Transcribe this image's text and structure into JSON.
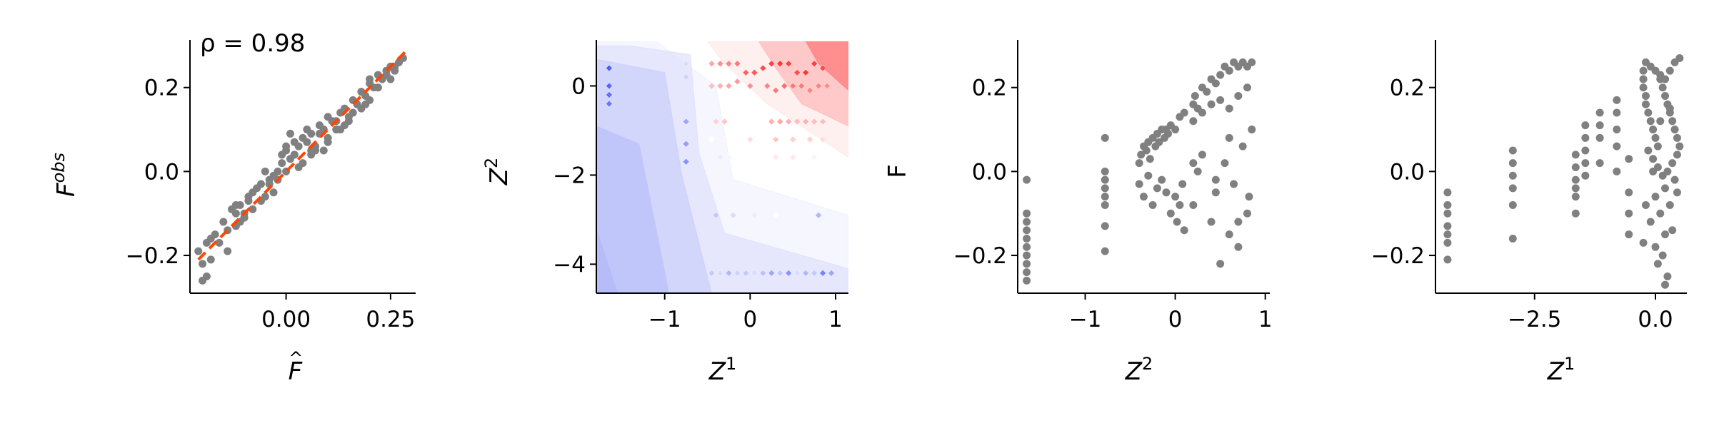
{
  "chart_data": [
    {
      "type": "scatter",
      "id": "fit",
      "xlabel": "F̂",
      "ylabel": "F^obs",
      "xlim": [
        -0.23,
        0.31
      ],
      "ylim": [
        -0.29,
        0.31
      ],
      "xticks": [
        0.0,
        0.25
      ],
      "xtick_labels": [
        "0.00",
        "0.25"
      ],
      "yticks": [
        -0.2,
        0.0,
        0.2
      ],
      "ytick_labels": [
        "−0.2",
        "0.0",
        "0.2"
      ],
      "annotation": "ρ = 0.98",
      "point_color": "#808080",
      "line_color": "#ff4500",
      "fit_line": {
        "x": [
          -0.21,
          0.29
        ],
        "y": [
          -0.21,
          0.29
        ]
      },
      "points": {
        "x": [
          -0.2,
          -0.19,
          -0.21,
          -0.18,
          -0.2,
          -0.17,
          -0.16,
          -0.18,
          -0.15,
          -0.13,
          -0.14,
          -0.12,
          -0.11,
          -0.12,
          -0.1,
          -0.09,
          -0.08,
          -0.1,
          -0.07,
          -0.06,
          -0.08,
          -0.05,
          -0.04,
          -0.06,
          -0.03,
          -0.02,
          -0.04,
          -0.01,
          0.0,
          -0.02,
          0.01,
          0.02,
          0.0,
          0.03,
          0.04,
          0.02,
          0.05,
          0.06,
          0.04,
          0.07,
          0.08,
          0.06,
          0.09,
          0.1,
          0.08,
          0.11,
          0.12,
          0.1,
          0.13,
          0.14,
          0.12,
          0.15,
          0.16,
          0.14,
          0.17,
          0.18,
          0.16,
          0.19,
          0.2,
          0.18,
          0.21,
          0.22,
          0.2,
          0.23,
          0.24,
          0.22,
          0.25,
          0.26,
          0.24,
          0.27,
          0.28,
          0.26,
          -0.12,
          -0.1,
          -0.11,
          -0.09,
          0.0,
          0.01,
          -0.01,
          0.02,
          0.03,
          0.05,
          0.07,
          0.1,
          0.13,
          0.15,
          0.18,
          0.2,
          -0.05,
          -0.03,
          0.06,
          0.09,
          0.12,
          0.19,
          0.22,
          0.25,
          -0.19,
          -0.14
        ],
        "y": [
          -0.22,
          -0.17,
          -0.19,
          -0.16,
          -0.26,
          -0.15,
          -0.17,
          -0.21,
          -0.12,
          -0.09,
          -0.14,
          -0.1,
          -0.08,
          -0.13,
          -0.1,
          -0.06,
          -0.05,
          -0.11,
          -0.04,
          -0.03,
          -0.09,
          -0.06,
          -0.02,
          -0.07,
          -0.01,
          0.0,
          -0.03,
          0.02,
          0.05,
          -0.02,
          0.03,
          0.04,
          0.0,
          0.06,
          0.02,
          0.04,
          0.07,
          0.05,
          0.08,
          0.06,
          0.09,
          0.04,
          0.1,
          0.08,
          0.11,
          0.12,
          0.1,
          0.13,
          0.14,
          0.11,
          0.12,
          0.13,
          0.17,
          0.15,
          0.16,
          0.19,
          0.14,
          0.18,
          0.21,
          0.19,
          0.2,
          0.23,
          0.22,
          0.22,
          0.24,
          0.2,
          0.25,
          0.24,
          0.23,
          0.26,
          0.27,
          0.25,
          -0.08,
          -0.11,
          -0.12,
          -0.07,
          0.06,
          0.09,
          0.04,
          0.07,
          0.01,
          0.1,
          0.05,
          0.07,
          0.1,
          0.12,
          0.15,
          0.17,
          0.0,
          -0.05,
          0.09,
          0.05,
          0.1,
          0.16,
          0.2,
          0.22,
          -0.25,
          -0.19
        ]
      }
    },
    {
      "type": "heatmap",
      "id": "contour",
      "xlabel": "Z^1",
      "ylabel": "Z^2",
      "xlim": [
        -1.8,
        1.15
      ],
      "ylim": [
        -4.65,
        1.0
      ],
      "xticks": [
        -1,
        0,
        1
      ],
      "xtick_labels": [
        "−1",
        "0",
        "1"
      ],
      "yticks": [
        -4,
        -2,
        0
      ],
      "ytick_labels": [
        "−4",
        "−2",
        "0"
      ],
      "colormap": [
        "#3b4cf0",
        "#ffffff",
        "#ff1e1e"
      ],
      "regions": [
        {
          "level": -0.9,
          "polygon": [
            [
              -1.8,
              -4.65
            ],
            [
              -1.55,
              -4.65
            ],
            [
              -1.8,
              -3.2
            ]
          ]
        },
        {
          "level": -0.7,
          "polygon": [
            [
              -1.8,
              -4.65
            ],
            [
              -0.95,
              -4.65
            ],
            [
              -1.3,
              -1.3
            ],
            [
              -1.8,
              -0.9
            ]
          ]
        },
        {
          "level": -0.5,
          "polygon": [
            [
              -1.8,
              -4.65
            ],
            [
              -0.45,
              -4.65
            ],
            [
              -0.8,
              -2.0
            ],
            [
              -1.0,
              0.3
            ],
            [
              -1.8,
              0.6
            ]
          ]
        },
        {
          "level": -0.3,
          "polygon": [
            [
              -1.8,
              -4.65
            ],
            [
              1.15,
              -4.65
            ],
            [
              1.15,
              -4.1
            ],
            [
              -0.3,
              -3.3
            ],
            [
              -0.6,
              -1.5
            ],
            [
              -0.7,
              0.7
            ],
            [
              -1.4,
              0.9
            ],
            [
              -1.8,
              0.9
            ]
          ]
        },
        {
          "level": -0.15,
          "polygon": [
            [
              -1.8,
              -4.65
            ],
            [
              1.15,
              -4.65
            ],
            [
              1.15,
              -2.9
            ],
            [
              -0.2,
              -2.1
            ],
            [
              -0.4,
              0.0
            ],
            [
              -1.1,
              1.0
            ],
            [
              -1.8,
              1.0
            ]
          ]
        },
        {
          "level": 0.2,
          "polygon": [
            [
              -0.5,
              1.0
            ],
            [
              1.15,
              1.0
            ],
            [
              1.15,
              -1.6
            ],
            [
              0.2,
              -0.4
            ],
            [
              -0.3,
              0.5
            ]
          ]
        },
        {
          "level": 0.45,
          "polygon": [
            [
              0.1,
              1.0
            ],
            [
              1.15,
              1.0
            ],
            [
              1.15,
              -0.9
            ],
            [
              0.6,
              -0.4
            ],
            [
              0.3,
              0.4
            ]
          ]
        },
        {
          "level": 0.7,
          "polygon": [
            [
              0.65,
              1.0
            ],
            [
              1.15,
              1.0
            ],
            [
              1.15,
              -0.1
            ],
            [
              0.8,
              0.5
            ]
          ]
        }
      ],
      "points": {
        "x": [
          -1.65,
          -1.65,
          -1.65,
          -1.65,
          -0.75,
          -0.75,
          -0.75,
          -0.75,
          -0.75,
          -0.45,
          -0.35,
          -0.25,
          -0.15,
          -0.05,
          0.05,
          0.15,
          0.25,
          0.35,
          0.45,
          0.55,
          0.65,
          0.75,
          0.85,
          -0.45,
          -0.35,
          -0.25,
          -0.15,
          0.0,
          0.2,
          0.3,
          0.4,
          0.5,
          0.6,
          0.7,
          0.8,
          0.9,
          -0.4,
          -0.3,
          0.25,
          0.35,
          0.45,
          0.55,
          0.65,
          0.75,
          0.85,
          -0.45,
          -0.3,
          0.0,
          0.3,
          0.5,
          0.7,
          0.85,
          -0.35,
          -0.25,
          -0.15,
          0.3,
          0.5,
          0.75,
          0.9,
          -0.4,
          -0.2,
          0.05,
          0.3,
          0.55,
          0.8,
          0.95
        ],
        "y": [
          0.4,
          0.0,
          -0.2,
          -0.4,
          0.5,
          0.2,
          -0.8,
          -1.3,
          -1.7,
          0.5,
          0.5,
          0.5,
          0.5,
          0.3,
          0.3,
          0.4,
          0.5,
          0.5,
          0.5,
          0.3,
          0.3,
          0.5,
          0.4,
          0.0,
          0.0,
          0.0,
          0.1,
          0.0,
          0.0,
          -0.1,
          0.0,
          0.0,
          0.0,
          -0.1,
          0.0,
          0.0,
          -0.8,
          -0.8,
          -0.8,
          -0.8,
          -0.8,
          -0.8,
          -0.8,
          -0.8,
          -0.8,
          -1.2,
          -1.2,
          -1.2,
          -1.2,
          -1.2,
          -1.2,
          -1.2,
          -1.6,
          -1.6,
          -1.6,
          -1.6,
          -1.6,
          -1.6,
          -1.6,
          -2.9,
          -2.9,
          -2.9,
          -2.9,
          -2.9,
          -2.9,
          -4.2
        ],
        "values": [
          -0.9,
          -0.85,
          -0.8,
          -0.75,
          -0.2,
          -0.25,
          -0.5,
          -0.55,
          -0.6,
          0.4,
          0.5,
          0.55,
          0.6,
          0.7,
          0.75,
          0.8,
          0.85,
          0.9,
          0.85,
          0.8,
          0.9,
          0.85,
          0.8,
          0.3,
          0.35,
          0.4,
          0.45,
          0.5,
          0.55,
          0.6,
          0.65,
          0.6,
          0.6,
          0.55,
          0.55,
          0.5,
          0.2,
          0.25,
          0.35,
          0.4,
          0.35,
          0.3,
          0.35,
          0.3,
          0.3,
          0.0,
          0.05,
          0.15,
          0.25,
          0.2,
          0.2,
          0.15,
          -0.1,
          -0.05,
          0.0,
          0.1,
          0.1,
          0.05,
          0.0,
          -0.3,
          -0.2,
          -0.1,
          0.0,
          -0.05,
          -0.4,
          -0.6
        ]
      },
      "bottom_row": {
        "y": -4.2,
        "x": [
          -0.45,
          -0.35,
          -0.25,
          -0.15,
          -0.05,
          0.05,
          0.15,
          0.25,
          0.35,
          0.45,
          0.55,
          0.65,
          0.75,
          0.85,
          0.95
        ],
        "values": [
          -0.3,
          -0.2,
          -0.4,
          -0.25,
          -0.3,
          -0.2,
          -0.35,
          -0.5,
          -0.3,
          -0.6,
          -0.2,
          -0.4,
          -0.3,
          -0.7,
          -0.5
        ]
      }
    },
    {
      "type": "scatter",
      "id": "z2_vs_f",
      "xlabel": "Z^2",
      "ylabel": "F",
      "xlim": [
        -1.75,
        1.05
      ],
      "ylim": [
        -0.29,
        0.31
      ],
      "xticks": [
        -1,
        0,
        1
      ],
      "xtick_labels": [
        "−1",
        "0",
        "1"
      ],
      "yticks": [
        -0.2,
        0.0,
        0.2
      ],
      "ytick_labels": [
        "−0.2",
        "0.0",
        "0.2"
      ],
      "point_color": "#808080",
      "points": {
        "x": [
          -1.65,
          -1.65,
          -1.65,
          -1.65,
          -1.65,
          -1.65,
          -1.65,
          -1.65,
          -1.65,
          -1.65,
          -0.78,
          -0.78,
          -0.78,
          -0.78,
          -0.78,
          -0.78,
          -0.78,
          -0.78,
          -0.4,
          -0.38,
          -0.35,
          -0.32,
          -0.3,
          -0.28,
          -0.25,
          -0.22,
          -0.2,
          -0.18,
          -0.15,
          -0.12,
          -0.1,
          -0.08,
          -0.05,
          -0.4,
          -0.35,
          -0.3,
          -0.25,
          -0.2,
          -0.15,
          -0.1,
          -0.05,
          0.0,
          0.02,
          0.05,
          0.08,
          0.1,
          0.0,
          0.05,
          0.1,
          0.2,
          0.22,
          0.25,
          0.3,
          0.35,
          0.4,
          0.45,
          0.5,
          0.55,
          0.6,
          0.65,
          0.7,
          0.75,
          0.8,
          0.85,
          0.2,
          0.3,
          0.4,
          0.5,
          0.6,
          0.7,
          0.8,
          0.25,
          0.45,
          0.55,
          0.65,
          0.75,
          0.85,
          0.2,
          0.4,
          0.6,
          0.8,
          0.5,
          0.7,
          0.3,
          0.6,
          0.82,
          0.2,
          0.45,
          0.7
        ],
        "y": [
          -0.26,
          -0.24,
          -0.22,
          -0.2,
          -0.18,
          -0.16,
          -0.14,
          -0.12,
          -0.1,
          -0.02,
          0.08,
          0.0,
          -0.02,
          -0.04,
          -0.06,
          -0.08,
          -0.13,
          -0.19,
          0.02,
          0.04,
          0.06,
          0.05,
          0.07,
          0.03,
          0.08,
          0.06,
          0.09,
          0.07,
          0.1,
          0.08,
          0.1,
          0.09,
          0.11,
          -0.03,
          -0.06,
          -0.01,
          -0.08,
          -0.04,
          -0.02,
          -0.05,
          -0.1,
          -0.06,
          -0.12,
          -0.08,
          -0.03,
          -0.14,
          0.1,
          0.13,
          0.14,
          0.16,
          0.18,
          0.15,
          0.2,
          0.19,
          0.22,
          0.21,
          0.23,
          0.25,
          0.24,
          0.26,
          0.25,
          0.26,
          0.25,
          0.26,
          0.12,
          0.14,
          0.16,
          0.17,
          0.15,
          0.18,
          0.2,
          0.0,
          -0.05,
          0.02,
          -0.03,
          0.06,
          0.1,
          -0.08,
          -0.12,
          -0.15,
          -0.1,
          -0.22,
          -0.18,
          0.04,
          0.08,
          -0.06,
          0.02,
          -0.02,
          -0.12
        ]
      }
    },
    {
      "type": "scatter",
      "id": "z1_vs_f",
      "xlabel": "Z^1",
      "ylabel": "",
      "xlim": [
        -4.55,
        0.65
      ],
      "ylim": [
        -0.29,
        0.31
      ],
      "xticks": [
        -2.5,
        0.0
      ],
      "xtick_labels": [
        "−2.5",
        "0.0"
      ],
      "yticks": [
        -0.2,
        0.0,
        0.2
      ],
      "ytick_labels": [
        "−0.2",
        "0.0",
        "0.2"
      ],
      "point_color": "#808080",
      "points": {
        "x": [
          -4.3,
          -4.3,
          -4.3,
          -4.3,
          -4.3,
          -4.3,
          -4.3,
          -2.95,
          -2.95,
          -2.95,
          -2.95,
          -2.95,
          -2.95,
          -1.65,
          -1.65,
          -1.65,
          -1.65,
          -1.65,
          -1.65,
          -1.45,
          -1.45,
          -1.45,
          -1.45,
          -1.45,
          -1.15,
          -1.15,
          -1.15,
          -1.15,
          -0.8,
          -0.8,
          -0.8,
          -0.8,
          -0.8,
          -0.55,
          -0.55,
          -0.55,
          -0.55,
          -0.25,
          -0.25,
          -0.25,
          -0.2,
          -0.2,
          -0.15,
          -0.1,
          -0.05,
          0.0,
          0.05,
          0.1,
          0.15,
          0.2,
          0.25,
          0.3,
          0.35,
          0.4,
          0.45,
          0.5,
          -0.2,
          -0.1,
          0.0,
          0.1,
          0.2,
          0.3,
          0.4,
          0.5,
          -0.15,
          -0.05,
          0.05,
          0.15,
          0.25,
          0.35,
          0.45,
          -0.2,
          0.0,
          0.2,
          0.4,
          -0.1,
          0.1,
          0.3,
          0.0,
          0.2,
          0.05,
          0.15,
          0.25,
          0.35,
          -0.25,
          0.45,
          -0.05,
          0.1,
          0.3,
          0.2
        ],
        "y": [
          -0.05,
          -0.08,
          -0.1,
          -0.13,
          -0.15,
          -0.17,
          -0.21,
          0.05,
          0.02,
          -0.01,
          -0.04,
          -0.08,
          -0.16,
          0.04,
          0.01,
          -0.02,
          -0.04,
          -0.06,
          -0.1,
          0.11,
          0.08,
          0.05,
          0.02,
          -0.01,
          0.14,
          0.11,
          0.08,
          0.02,
          0.17,
          0.14,
          0.1,
          0.06,
          0.0,
          0.03,
          -0.05,
          -0.1,
          -0.15,
          0.24,
          0.22,
          0.2,
          0.18,
          0.16,
          0.14,
          0.12,
          0.1,
          0.08,
          0.06,
          0.22,
          0.2,
          0.18,
          0.16,
          0.14,
          0.12,
          0.1,
          0.08,
          0.06,
          0.26,
          0.25,
          0.24,
          0.23,
          0.22,
          0.24,
          0.26,
          0.27,
          0.05,
          0.03,
          0.01,
          -0.01,
          0.0,
          0.02,
          0.04,
          -0.08,
          -0.06,
          -0.04,
          -0.02,
          -0.12,
          -0.1,
          -0.08,
          -0.18,
          -0.15,
          -0.22,
          -0.2,
          -0.25,
          -0.14,
          -0.17,
          -0.05,
          0.0,
          0.12,
          0.15,
          -0.27
        ]
      }
    }
  ]
}
